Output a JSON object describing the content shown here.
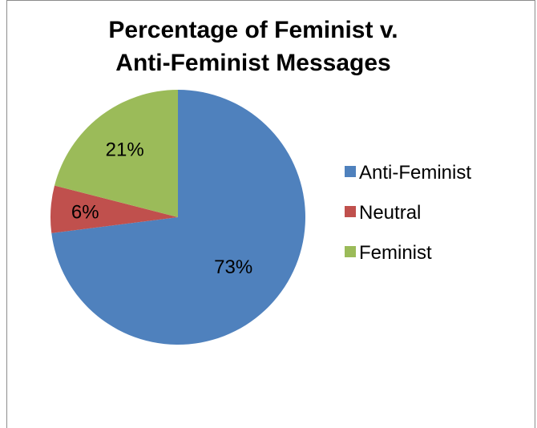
{
  "chart_data": {
    "type": "pie",
    "title": "Percentage of Feminist v. Anti-Feminist Messages",
    "title_lines": [
      "Percentage of Feminist v.",
      "Anti-Feminist Messages"
    ],
    "categories": [
      "Anti-Feminist",
      "Neutral",
      "Feminist"
    ],
    "values": [
      73,
      6,
      21
    ],
    "data_labels": [
      "73%",
      "6%",
      "21%"
    ],
    "colors": [
      "#4f81bd",
      "#c0504d",
      "#9bbb59"
    ],
    "legend_position": "right",
    "start_angle": "12 o'clock",
    "direction": "clockwise"
  }
}
